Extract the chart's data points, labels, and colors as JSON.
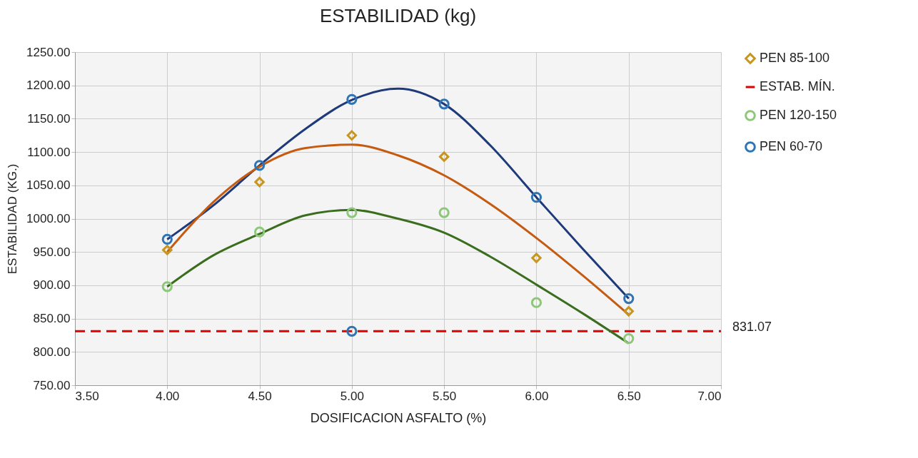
{
  "chart_data": {
    "type": "scatter",
    "title": "ESTABILIDAD (kg)",
    "xlabel": "DOSIFICACION  ASFALTO  (%)",
    "ylabel": "ESTABILIDAD (KG.)",
    "x": [
      4.0,
      4.5,
      5.0,
      5.5,
      6.0,
      6.5
    ],
    "series": [
      {
        "name": "PEN 85-100",
        "marker": "diamond",
        "color": "#c8961e",
        "values": [
          953,
          1055,
          1125,
          1093,
          941,
          861
        ]
      },
      {
        "name": "ESTAB. MÍN.",
        "type": "line",
        "marker": "none",
        "line_style": "dashed",
        "color": "#e00000",
        "x": [
          3.5,
          5.0,
          7.0
        ],
        "values": [
          831.07,
          831.07,
          831.07
        ]
      },
      {
        "name": "PEN 120-150",
        "marker": "circle",
        "color": "#8cc878",
        "values": [
          898,
          980,
          1009,
          1009,
          874,
          820
        ]
      },
      {
        "name": "PEN 60-70",
        "marker": "circle",
        "color": "#2e75b6",
        "values": [
          969,
          1080,
          1179,
          1172,
          1032,
          880
        ]
      },
      {
        "marker": "circle",
        "color": "#2e75b6",
        "x": [
          5.0
        ],
        "values": [
          831.07
        ]
      },
      {
        "type": "line",
        "marker": "none",
        "line_style": "solid",
        "color": "#1f3a7a",
        "x": [
          4.0,
          4.25,
          4.5,
          4.75,
          5.0,
          5.25,
          5.5,
          5.75,
          6.0,
          6.25,
          6.5
        ],
        "values": [
          969,
          1020,
          1080,
          1135,
          1178,
          1195,
          1172,
          1110,
          1032,
          955,
          880
        ]
      },
      {
        "type": "line",
        "marker": "none",
        "line_style": "solid",
        "color": "#c55a11",
        "x": [
          4.0,
          4.25,
          4.5,
          4.75,
          5.0,
          5.25,
          5.5,
          5.75,
          6.0,
          6.25,
          6.5
        ],
        "values": [
          950,
          1025,
          1078,
          1106,
          1111,
          1095,
          1065,
          1022,
          971,
          915,
          856
        ]
      },
      {
        "type": "line",
        "marker": "none",
        "line_style": "solid",
        "color": "#3a6e1e",
        "x": [
          4.0,
          4.25,
          4.5,
          4.75,
          5.0,
          5.25,
          5.5,
          5.75,
          6.0,
          6.25,
          6.5
        ],
        "values": [
          898,
          945,
          977,
          1005,
          1013,
          1000,
          979,
          943,
          901,
          858,
          813
        ]
      }
    ],
    "annotations": [
      {
        "text": "831.07",
        "x": 7.0,
        "y": 831.07
      }
    ],
    "xlim": [
      3.5,
      7.0
    ],
    "xticks": [
      {
        "value": 3.5,
        "label": "3.50"
      },
      {
        "value": 4,
        "label": "4.00"
      },
      {
        "value": 4.5,
        "label": "4.50"
      },
      {
        "value": 5,
        "label": "5.00"
      },
      {
        "value": 5.5,
        "label": "5.50"
      },
      {
        "value": 6,
        "label": "6.00"
      },
      {
        "value": 6.5,
        "label": "6.50"
      },
      {
        "value": 7,
        "label": "7.00"
      }
    ],
    "ylim": [
      750,
      1250
    ],
    "yticks": [
      {
        "value": 750,
        "label": "750.00"
      },
      {
        "value": 800,
        "label": "800.00"
      },
      {
        "value": 850,
        "label": "850.00"
      },
      {
        "value": 900,
        "label": "900.00"
      },
      {
        "value": 950,
        "label": "950.00"
      },
      {
        "value": 1000,
        "label": "1000.00"
      },
      {
        "value": 1050,
        "label": "1050.00"
      },
      {
        "value": 1100,
        "label": "1100.00"
      },
      {
        "value": 1150,
        "label": "1150.00"
      },
      {
        "value": 1200,
        "label": "1200.00"
      },
      {
        "value": 1250,
        "label": "1250.00"
      }
    ],
    "grid": true,
    "legend": "right"
  }
}
